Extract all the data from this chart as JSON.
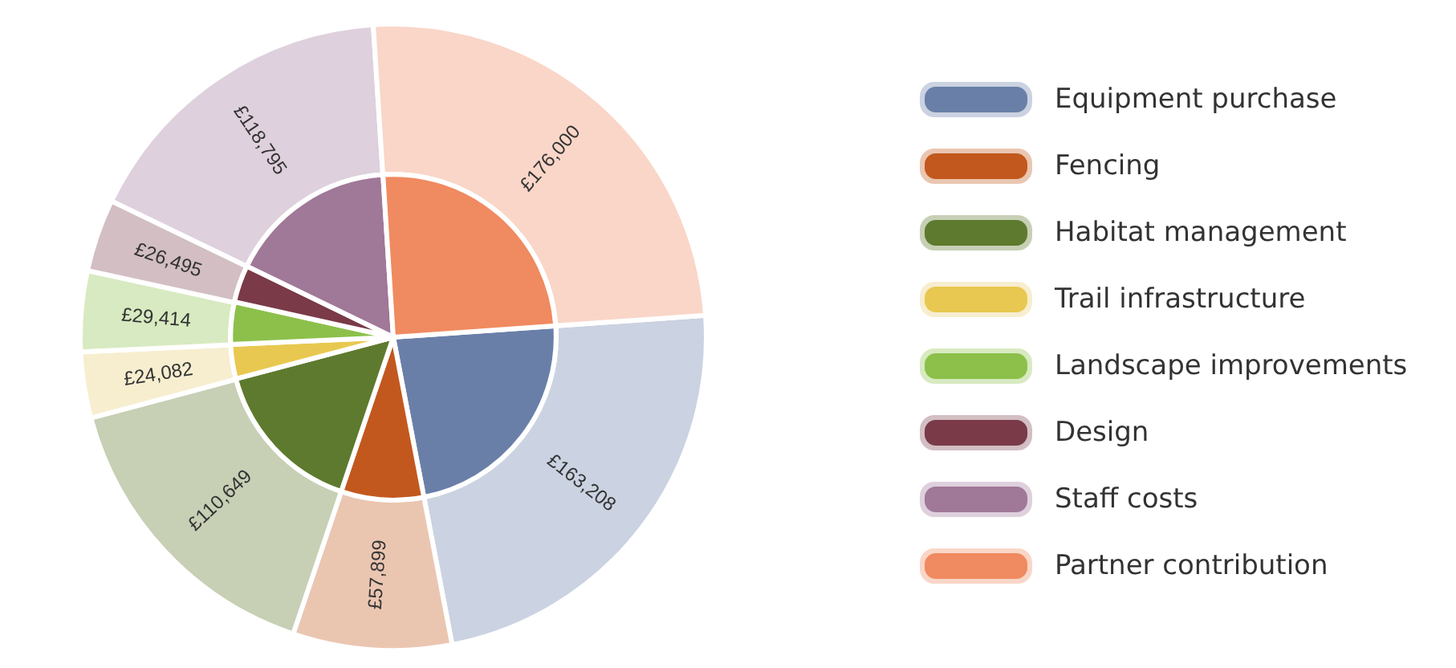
{
  "chart_data": {
    "type": "pie",
    "categories": [
      "Equipment purchase",
      "Fencing",
      "Habitat management",
      "Trail infrastructure",
      "Landscape improvements",
      "Design",
      "Staff costs",
      "Partner contribution"
    ],
    "series": [
      {
        "values": [
          163208,
          57899,
          110649,
          24082,
          29414,
          26495,
          118795,
          176000
        ],
        "colors": [
          "#cbd2e1",
          "#eac6b1",
          "#c7cfb5",
          "#f7eed0",
          "#d8eac1",
          "#d2bec3",
          "#ded0dc",
          "#f9d6c8"
        ],
        "value_labels": [
          "£163,208",
          "£57,899",
          "£110,649",
          "£24,082",
          "£29,414",
          "£26,495",
          "£118,795",
          "£176,000"
        ]
      },
      {
        "values": [
          23.1,
          8.2,
          15.7,
          3.4,
          4.2,
          3.7,
          16.8,
          24.9
        ],
        "colors": [
          "#6a7fa8",
          "#c2581e",
          "#5e7a2e",
          "#e8c850",
          "#8cc04a",
          "#7a3a48",
          "#a07898",
          "#f08a60"
        ]
      }
    ],
    "legend": "right"
  }
}
